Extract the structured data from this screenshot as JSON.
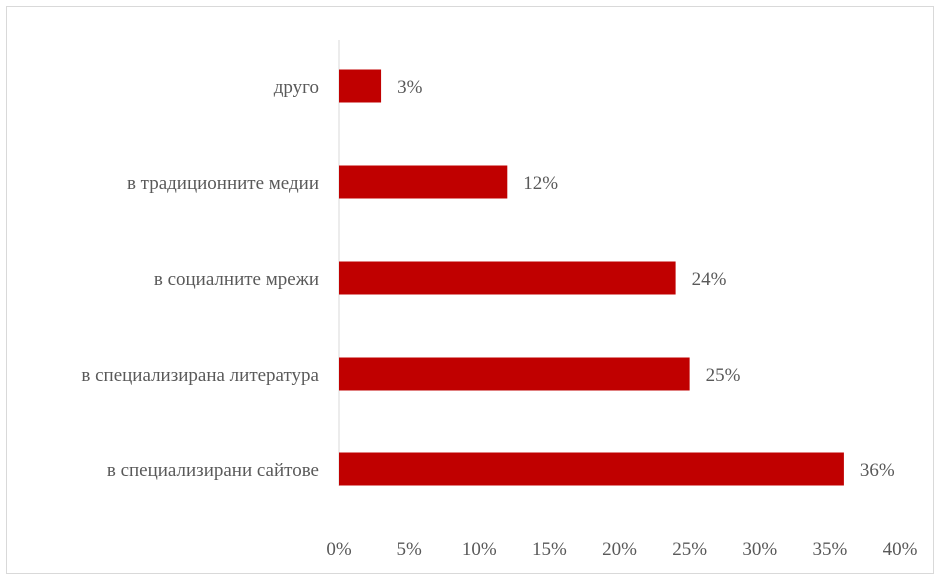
{
  "chart_data": {
    "type": "bar",
    "orientation": "horizontal",
    "categories": [
      "друго",
      "в традиционните медии",
      "в социалните мрежи",
      "в специализирана литература",
      "в специализирани сайтове"
    ],
    "values": [
      3,
      12,
      24,
      25,
      36
    ],
    "data_labels": [
      "3%",
      "12%",
      "24%",
      "25%",
      "36%"
    ],
    "xlim": [
      0,
      40
    ],
    "x_ticks": [
      0,
      5,
      10,
      15,
      20,
      25,
      30,
      35,
      40
    ],
    "x_tick_labels": [
      "0%",
      "5%",
      "10%",
      "15%",
      "20%",
      "25%",
      "30%",
      "35%",
      "40%"
    ],
    "bar_color": "#c00000",
    "grid": false,
    "legend": "none"
  }
}
